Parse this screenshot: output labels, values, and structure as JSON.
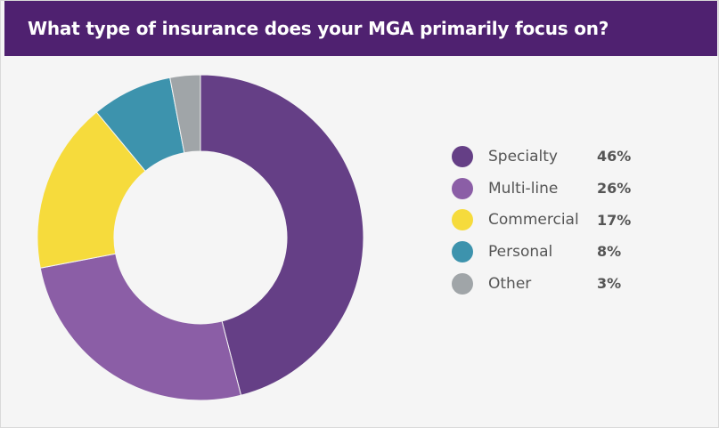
{
  "title": "What type of insurance does your MGA primarily focus on?",
  "chart_data": {
    "type": "pie",
    "title": "What type of insurance does your MGA primarily focus on?",
    "categories": [
      "Specialty",
      "Multi-line",
      "Commercial",
      "Personal",
      "Other"
    ],
    "values": [
      46,
      26,
      17,
      8,
      3
    ],
    "value_labels": [
      "46%",
      "26%",
      "17%",
      "8%",
      "3%"
    ],
    "unit": "%",
    "colors": [
      "#653f86",
      "#8b5ea6",
      "#f6db3c",
      "#3d93ad",
      "#a0a5a8"
    ],
    "donut": true,
    "start_angle": "top",
    "direction": "clockwise",
    "legend_position": "right"
  }
}
